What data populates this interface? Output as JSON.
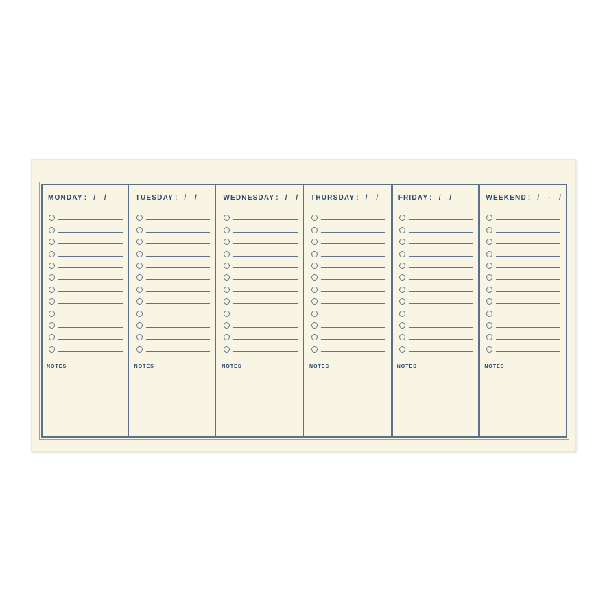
{
  "colors": {
    "page_background": "#ffffff",
    "pad_background": "#f9f5e4",
    "rule_color": "#5b7089",
    "outer_rule_color": "#93a2b2",
    "text_color": "#2b4a6f",
    "task_line_color": "#61768e"
  },
  "planner": {
    "rows_per_day": 12,
    "notes_label": "NOTES",
    "days": [
      {
        "name": "MONDAY",
        "colon": ":",
        "date_placeholder": "/ /"
      },
      {
        "name": "TUESDAY",
        "colon": ":",
        "date_placeholder": "/ /"
      },
      {
        "name": "WEDNESDAY",
        "colon": ":",
        "date_placeholder": "/ /"
      },
      {
        "name": "THURSDAY",
        "colon": ":",
        "date_placeholder": "/ /"
      },
      {
        "name": "FRIDAY",
        "colon": ":",
        "date_placeholder": "/ /"
      },
      {
        "name": "WEEKEND",
        "colon": ":",
        "date_placeholder": "/ - /"
      }
    ]
  }
}
